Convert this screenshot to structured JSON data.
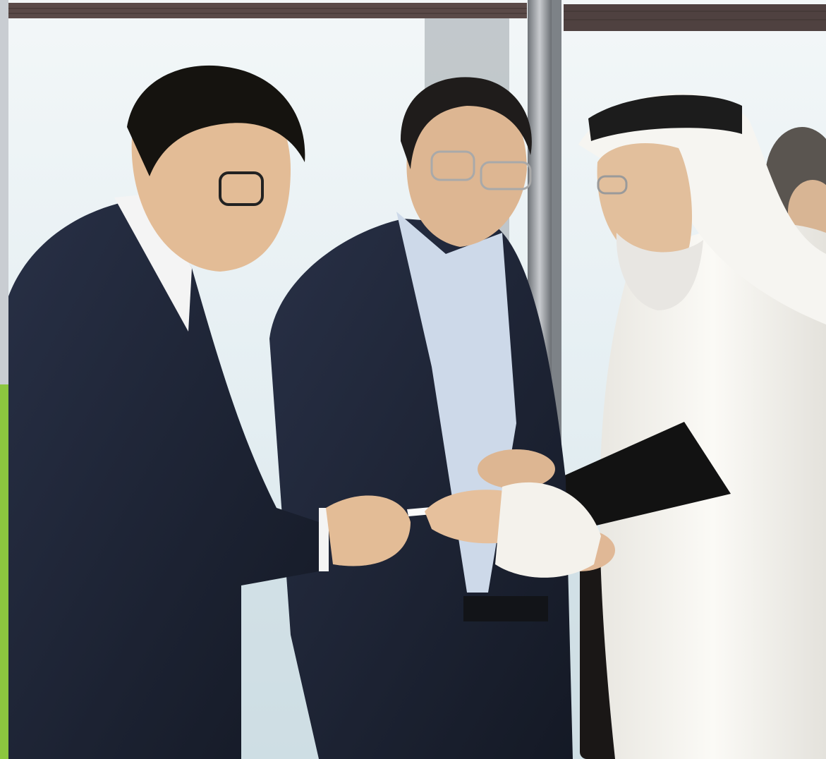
{
  "scene": {
    "kind": "photograph",
    "colors": {
      "accent_strip": "#8cc63f",
      "strip_top": "#c9cdd2",
      "sky": "#e9f1f4",
      "suit": "#1e2433",
      "thobe": "#f4f2ec",
      "skin": "#e7c4a2",
      "frame_metal": "#8a8f94",
      "blind": "#5a4a48"
    }
  }
}
